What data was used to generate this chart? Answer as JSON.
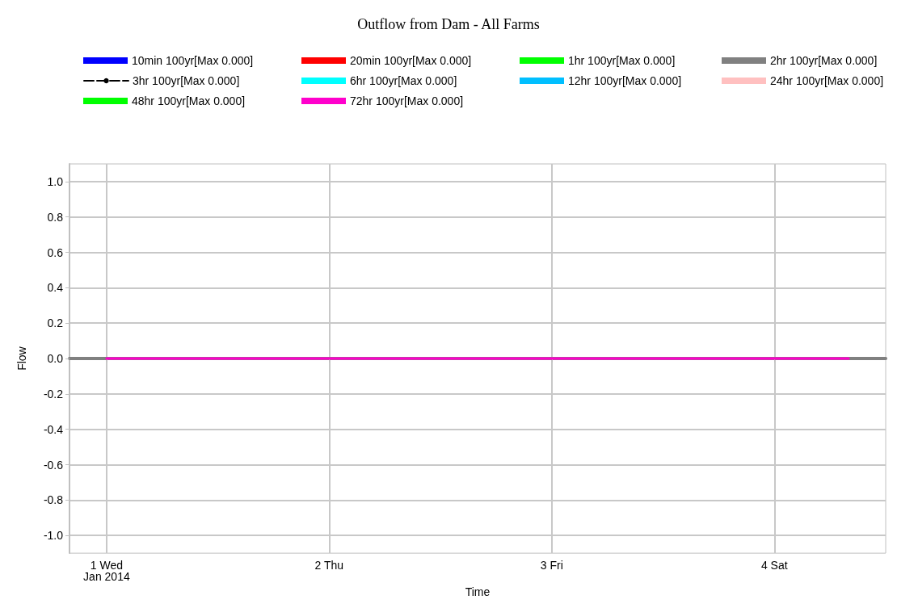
{
  "chart_data": {
    "type": "line",
    "title": "Outflow from Dam - All Farms",
    "xlabel": "Time",
    "ylabel": "Flow",
    "xlim": [
      "2013-12-31T20:00",
      "2014-01-04T12:00"
    ],
    "xticks": [
      {
        "value": "2014-01-01T00:00",
        "label": "1 Wed\nJan 2014"
      },
      {
        "value": "2014-01-02T00:00",
        "label": "2 Thu"
      },
      {
        "value": "2014-01-03T00:00",
        "label": "3 Fri"
      },
      {
        "value": "2014-01-04T00:00",
        "label": "4 Sat"
      }
    ],
    "ylim": [
      -1.1,
      1.1
    ],
    "yticks": [
      {
        "value": -1,
        "label": "-1.0"
      },
      {
        "value": -0.8,
        "label": "-0.8"
      },
      {
        "value": -0.6,
        "label": "-0.6"
      },
      {
        "value": -0.4,
        "label": "-0.4"
      },
      {
        "value": -0.2,
        "label": "-0.2"
      },
      {
        "value": 0,
        "label": "0.0"
      },
      {
        "value": 0.2,
        "label": "0.2"
      },
      {
        "value": 0.4,
        "label": "0.4"
      },
      {
        "value": 0.6,
        "label": "0.6"
      },
      {
        "value": 0.8,
        "label": "0.8"
      },
      {
        "value": 1,
        "label": "1.0"
      }
    ],
    "grid": true,
    "legend": "top",
    "marker": "none",
    "line_style": "solid",
    "x": [
      "2014-01-01T00:00",
      "2014-01-04T08:00"
    ],
    "series": [
      {
        "name": "10min 100yr[Max 0.000]",
        "color": "#0000ff",
        "values": [
          null,
          null
        ]
      },
      {
        "name": "20min 100yr[Max 0.000]",
        "color": "#ff0000",
        "values": [
          null,
          null
        ]
      },
      {
        "name": "1hr 100yr[Max 0.000]",
        "color": "#00ff00",
        "values": [
          null,
          null
        ]
      },
      {
        "name": "2hr 100yr[Max 0.000]",
        "color": "#808080",
        "values": [
          null,
          null
        ]
      },
      {
        "name": "3hr 100yr[Max 0.000]",
        "color": "#000000",
        "values": [
          null,
          null
        ],
        "line_style": "dashed"
      },
      {
        "name": "6hr 100yr[Max 0.000]",
        "color": "#00ffff",
        "values": [
          null,
          null
        ]
      },
      {
        "name": "12hr 100yr[Max 0.000]",
        "color": "#00bfff",
        "values": [
          null,
          null
        ]
      },
      {
        "name": "24hr 100yr[Max 0.000]",
        "color": "#ffc0c0",
        "values": [
          null,
          null
        ]
      },
      {
        "name": "48hr 100yr[Max 0.000]",
        "color": "#00ff00",
        "values": [
          null,
          null
        ]
      },
      {
        "name": "72hr 100yr[Max 0.000]",
        "color": "#ff00cc",
        "values": [
          0,
          0
        ]
      }
    ]
  }
}
